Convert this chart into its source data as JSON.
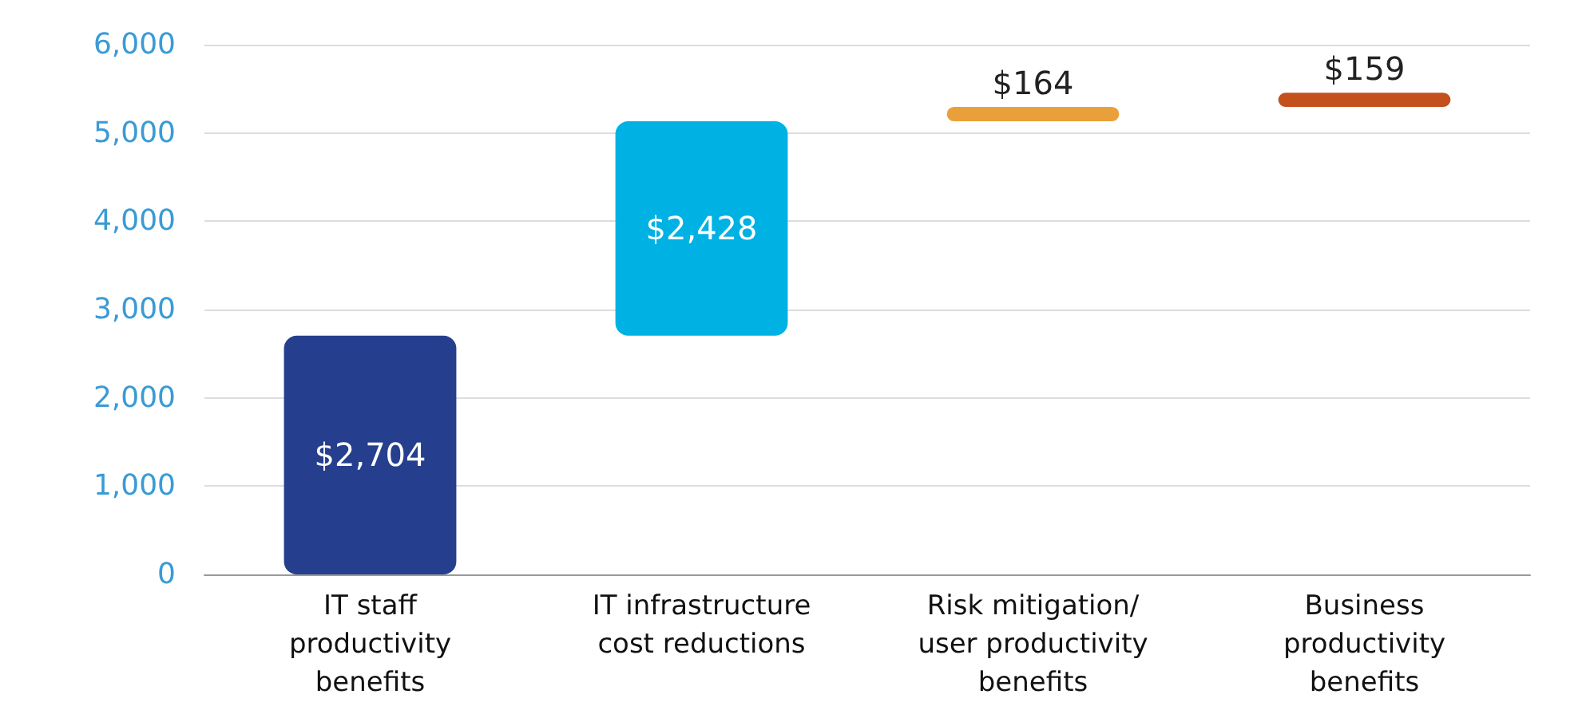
{
  "chart_data": {
    "type": "bar",
    "categories": [
      "IT staff\nproductivity\nbenefits",
      "IT infrastructure\ncost reductions",
      "Risk mitigation/\nuser productivity\nbenefits",
      "Business\nproductivity\nbenefits"
    ],
    "values": [
      2704,
      2428,
      164,
      159
    ],
    "base": [
      0,
      2704,
      5132,
      5296
    ],
    "colors": [
      "#253f8e",
      "#00b1e3",
      "#e9a03b",
      "#c4501e"
    ],
    "value_labels": [
      "$2,704",
      "$2,428",
      "$164",
      "$159"
    ],
    "ylim": [
      0,
      6000
    ],
    "yticks": [
      {
        "value": 0,
        "label": "0"
      },
      {
        "value": 1000,
        "label": "1,000"
      },
      {
        "value": 2000,
        "label": "2,000"
      },
      {
        "value": 3000,
        "label": "3,000"
      },
      {
        "value": 4000,
        "label": "4,000"
      },
      {
        "value": 5000,
        "label": "5,000"
      },
      {
        "value": 6000,
        "label": "6,000"
      }
    ],
    "grid": "y"
  }
}
